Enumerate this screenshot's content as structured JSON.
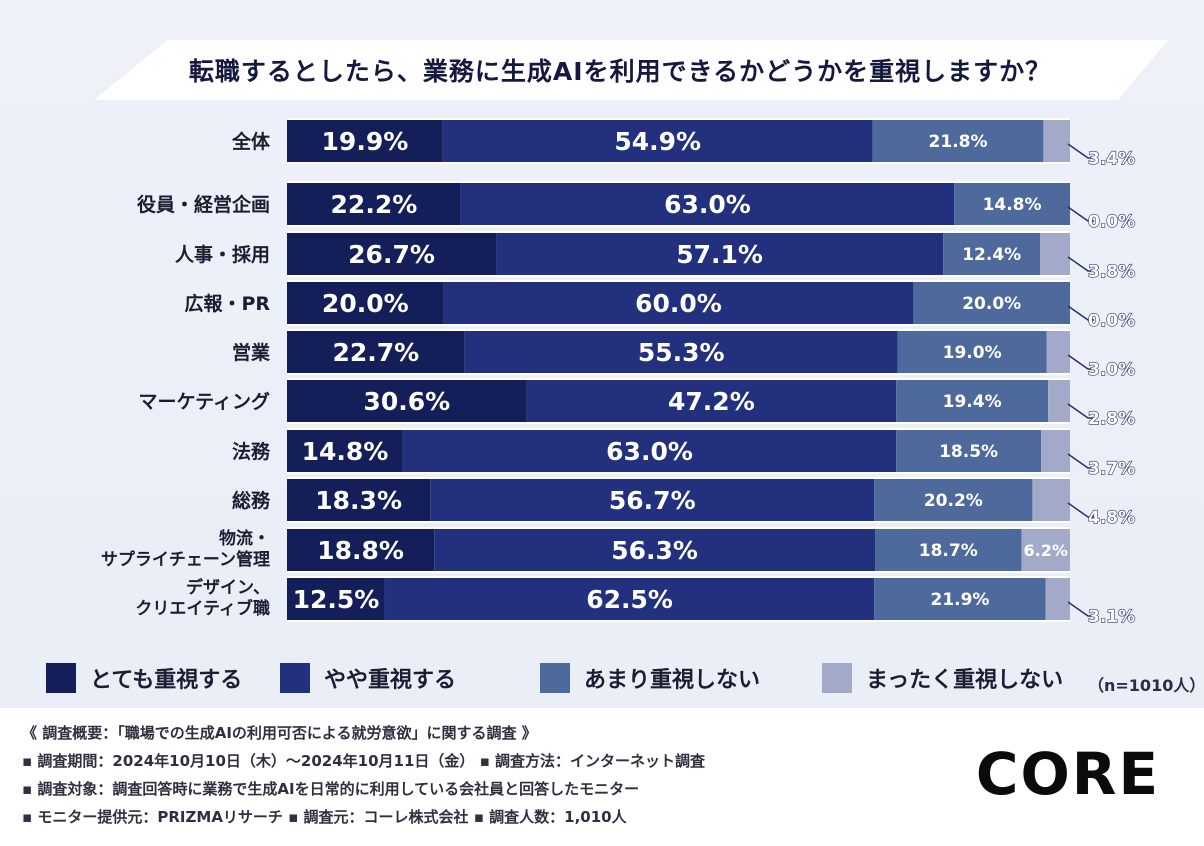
{
  "title": "転職するとしたら、業務に生成AIを利用できるかどうかを重視しますか？",
  "chart_data": {
    "type": "bar",
    "orientation": "horizontal",
    "stacked": true,
    "title": "転職するとしたら、業務に生成AIを利用できるかどうかを重視しますか？",
    "xlim": [
      0,
      100
    ],
    "categories": [
      "全体",
      "役員・経営企画",
      "人事・採用",
      "広報・PR",
      "営業",
      "マーケティング",
      "法務",
      "総務",
      "物流・\nサプライチェーン管理",
      "デザイン、\nクリエイティブ職"
    ],
    "series": [
      {
        "name": "とても重視する",
        "color": "#141f5a",
        "values": [
          19.9,
          22.2,
          26.7,
          20.0,
          22.7,
          30.6,
          14.8,
          18.3,
          18.8,
          12.5
        ],
        "labels": [
          "19.9%",
          "22.2%",
          "26.7%",
          "20.0%",
          "22.7%",
          "30.6%",
          "14.8%",
          "18.3%",
          "18.8%",
          "12.5%"
        ]
      },
      {
        "name": "やや重視する",
        "color": "#23307d",
        "values": [
          54.9,
          63.0,
          57.1,
          60.0,
          55.3,
          47.2,
          63.0,
          56.7,
          56.3,
          62.5
        ],
        "labels": [
          "54.9%",
          "63.0%",
          "57.1%",
          "60.0%",
          "55.3%",
          "47.2%",
          "63.0%",
          "56.7%",
          "56.3%",
          "62.5%"
        ]
      },
      {
        "name": "あまり重視しない",
        "color": "#4e6a9c",
        "values": [
          21.8,
          14.8,
          12.4,
          20.0,
          19.0,
          19.4,
          18.5,
          20.2,
          18.7,
          21.9
        ],
        "labels": [
          "21.8%",
          "14.8%",
          "12.4%",
          "20.0%",
          "19.0%",
          "19.4%",
          "18.5%",
          "20.2%",
          "18.7%",
          "21.9%"
        ]
      },
      {
        "name": "まったく重視しない",
        "color": "#a3a9c8",
        "values": [
          3.4,
          0.0,
          3.8,
          0.0,
          3.0,
          2.8,
          3.7,
          4.8,
          6.2,
          3.1
        ],
        "labels": [
          "3.4%",
          "0.0%",
          "3.8%",
          "0.0%",
          "3.0%",
          "2.8%",
          "3.7%",
          "4.8%",
          "6.2%",
          "3.1%"
        ]
      }
    ]
  },
  "legend": {
    "items": [
      {
        "label": "とても重視する",
        "color": "#141f5a"
      },
      {
        "label": "やや重視する",
        "color": "#23307d"
      },
      {
        "label": "あまり重視しない",
        "color": "#4e6a9c"
      },
      {
        "label": "まったく重視しない",
        "color": "#a3a9c8"
      }
    ],
    "n": "（n=1010人）"
  },
  "footer": {
    "line1": "《 調査概要：「職場での生成AIの利用可否による就労意欲」に関する調査 》",
    "line2": "▪ 調査期間：2024年10月10日（木）～2024年10月11日（金） ▪ 調査方法：インターネット調査",
    "line3": "▪ 調査対象：調査回答時に業務で生成AIを日常的に利用している会社員と回答したモニター",
    "line4": "▪ モニター提供元：PRIZMAリサーチ ▪ 調査元：コーレ株式会社 ▪ 調査人数：1,010人"
  },
  "logo": {
    "text": "CORE"
  },
  "colors": {
    "banner": "#ffffff",
    "accent": "#141f5a"
  }
}
